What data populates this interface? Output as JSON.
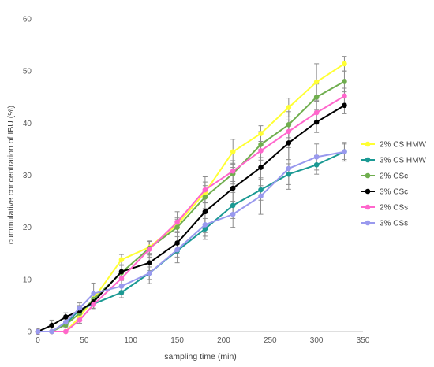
{
  "chart_data": {
    "type": "line",
    "xlabel": "sampling time (min)",
    "ylabel": "cummulative concentration of IBU (%)",
    "xlim": [
      0,
      350
    ],
    "ylim": [
      0,
      60
    ],
    "xticks": [
      0,
      50,
      100,
      150,
      200,
      250,
      300,
      350
    ],
    "yticks": [
      0,
      10,
      20,
      30,
      40,
      50,
      60
    ],
    "grid": false,
    "legend_position": "right",
    "x": [
      0,
      15,
      30,
      45,
      60,
      90,
      120,
      150,
      180,
      210,
      240,
      270,
      300,
      330
    ],
    "series": [
      {
        "name": "2% CS HMW",
        "color": "#FFFF33",
        "values": [
          0,
          0,
          0,
          2.8,
          6.3,
          13.8,
          16.2,
          20.5,
          26.7,
          34.5,
          38.0,
          43.0,
          47.9,
          51.4
        ],
        "errors": [
          0,
          0,
          0,
          0.5,
          0.8,
          1.0,
          1.2,
          1.3,
          2.0,
          2.4,
          1.5,
          1.8,
          3.5,
          1.4
        ]
      },
      {
        "name": "3% CS HMW",
        "color": "#1A9993",
        "values": [
          0,
          0,
          1.5,
          4.2,
          5.3,
          7.5,
          11.2,
          15.5,
          19.7,
          24.2,
          27.2,
          30.2,
          32.0,
          34.5
        ],
        "errors": [
          0,
          0,
          0.5,
          0.8,
          0.8,
          1.0,
          1.2,
          1.2,
          2.0,
          2.5,
          2.0,
          2.0,
          1.8,
          1.5
        ]
      },
      {
        "name": "2% CSc",
        "color": "#6FAE4E",
        "values": [
          0,
          0,
          1.3,
          3.5,
          6.2,
          11.3,
          16.0,
          20.0,
          25.8,
          30.3,
          35.9,
          39.7,
          45.0,
          48.0
        ],
        "errors": [
          0,
          0,
          0.5,
          0.8,
          1.0,
          1.5,
          1.3,
          1.5,
          2.2,
          2.0,
          2.5,
          2.5,
          2.5,
          2.0
        ]
      },
      {
        "name": "3% CSc",
        "color": "#000000",
        "values": [
          0,
          1.2,
          2.8,
          4.0,
          5.7,
          11.5,
          13.2,
          17.0,
          23.0,
          27.5,
          31.5,
          36.2,
          40.2,
          43.4
        ],
        "errors": [
          0.6,
          1.0,
          0.8,
          0.8,
          0.8,
          1.2,
          1.5,
          2.0,
          4.0,
          4.0,
          3.5,
          3.2,
          2.0,
          1.6
        ]
      },
      {
        "name": "2% CSs",
        "color": "#FF66CC",
        "values": [
          0,
          0,
          0,
          2.2,
          5.2,
          10.2,
          15.8,
          21.0,
          27.2,
          30.8,
          34.7,
          38.4,
          42.0,
          45.2
        ],
        "errors": [
          0,
          0,
          0,
          0.6,
          0.8,
          1.3,
          1.5,
          2.0,
          2.5,
          2.0,
          1.8,
          2.2,
          2.2,
          1.5
        ]
      },
      {
        "name": "3% CSs",
        "color": "#9999EE",
        "values": [
          0,
          0,
          1.8,
          4.5,
          7.3,
          8.7,
          11.2,
          15.7,
          20.5,
          22.5,
          26.0,
          31.3,
          33.5,
          34.5
        ],
        "errors": [
          0,
          0,
          0.6,
          1.0,
          2.0,
          1.5,
          2.0,
          2.5,
          2.2,
          2.5,
          3.5,
          4.0,
          2.5,
          1.8
        ]
      }
    ]
  }
}
